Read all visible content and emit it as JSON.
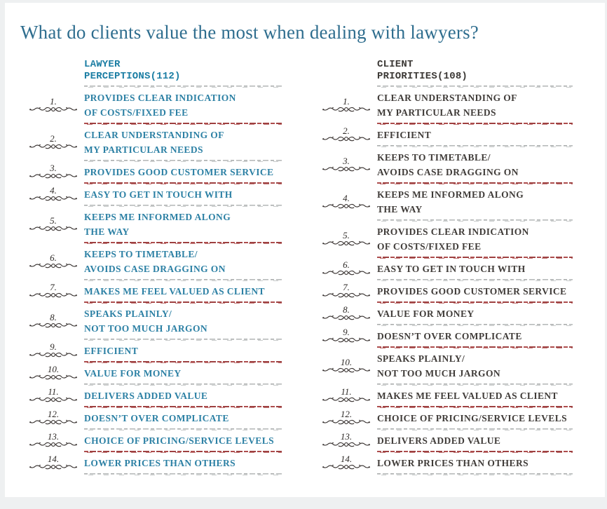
{
  "title": "What do clients value the most when dealing with lawyers?",
  "colors": {
    "title_teal": "#2e6d8e",
    "lawyer_accent_teal": "#1a7da3",
    "client_dark": "#3b3835",
    "separator_red": "#ad4d4d",
    "separator_gray": "#aaadad",
    "ornament_ink": "#383230"
  },
  "columns": [
    {
      "header_line1": "LAWYER",
      "header_line2": "PERCEPTIONS(112)",
      "items": [
        {
          "num": "1.",
          "lines": [
            "PROVIDES CLEAR INDICATION",
            "OF COSTS/FIXED FEE"
          ]
        },
        {
          "num": "2.",
          "lines": [
            "CLEAR UNDERSTANDING OF",
            "MY PARTICULAR NEEDS"
          ]
        },
        {
          "num": "3.",
          "lines": [
            "PROVIDES GOOD CUSTOMER SERVICE"
          ]
        },
        {
          "num": "4.",
          "lines": [
            "EASY TO GET IN TOUCH WITH"
          ]
        },
        {
          "num": "5.",
          "lines": [
            "KEEPS ME INFORMED ALONG",
            "THE WAY"
          ]
        },
        {
          "num": "6.",
          "lines": [
            "KEEPS TO TIMETABLE/",
            "AVOIDS CASE DRAGGING ON"
          ]
        },
        {
          "num": "7.",
          "lines": [
            "MAKES ME FEEL VALUED AS CLIENT"
          ]
        },
        {
          "num": "8.",
          "lines": [
            "SPEAKS PLAINLY/",
            "NOT TOO MUCH JARGON"
          ]
        },
        {
          "num": "9.",
          "lines": [
            "EFFICIENT"
          ]
        },
        {
          "num": "10.",
          "lines": [
            "VALUE FOR MONEY"
          ]
        },
        {
          "num": "11.",
          "lines": [
            "DELIVERS ADDED VALUE"
          ]
        },
        {
          "num": "12.",
          "lines": [
            "DOESN’T OVER COMPLICATE"
          ]
        },
        {
          "num": "13.",
          "lines": [
            "CHOICE OF PRICING/SERVICE LEVELS"
          ]
        },
        {
          "num": "14.",
          "lines": [
            "LOWER PRICES THAN OTHERS"
          ]
        }
      ]
    },
    {
      "header_line1": "CLIENT",
      "header_line2": "PRIORITIES(108)",
      "items": [
        {
          "num": "1.",
          "lines": [
            "CLEAR UNDERSTANDING OF",
            "MY PARTICULAR NEEDS"
          ]
        },
        {
          "num": "2.",
          "lines": [
            "EFFICIENT"
          ]
        },
        {
          "num": "3.",
          "lines": [
            "KEEPS TO TIMETABLE/",
            "AVOIDS CASE DRAGGING ON"
          ]
        },
        {
          "num": "4.",
          "lines": [
            "KEEPS ME INFORMED ALONG",
            "THE WAY"
          ]
        },
        {
          "num": "5.",
          "lines": [
            "PROVIDES CLEAR INDICATION",
            "OF COSTS/FIXED FEE"
          ]
        },
        {
          "num": "6.",
          "lines": [
            "EASY TO GET IN TOUCH WITH"
          ]
        },
        {
          "num": "7.",
          "lines": [
            "PROVIDES GOOD CUSTOMER SERVICE"
          ]
        },
        {
          "num": "8.",
          "lines": [
            "VALUE FOR MONEY"
          ]
        },
        {
          "num": "9.",
          "lines": [
            "DOESN’T OVER COMPLICATE"
          ]
        },
        {
          "num": "10.",
          "lines": [
            "SPEAKS PLAINLY/",
            "NOT TOO MUCH JARGON"
          ]
        },
        {
          "num": "11.",
          "lines": [
            "MAKES ME FEEL VALUED AS CLIENT"
          ]
        },
        {
          "num": "12.",
          "lines": [
            "CHOICE OF PRICING/SERVICE LEVELS"
          ]
        },
        {
          "num": "13.",
          "lines": [
            "DELIVERS ADDED VALUE"
          ]
        },
        {
          "num": "14.",
          "lines": [
            "LOWER PRICES THAN OTHERS"
          ]
        }
      ]
    }
  ],
  "chart_data": {
    "type": "table",
    "title": "What do clients value the most when dealing with lawyers?",
    "columns": [
      "LAWYER PERCEPTIONS(112)",
      "CLIENT PRIORITIES(108)"
    ],
    "lawyer_perceptions_ranking": [
      "PROVIDES CLEAR INDICATION OF COSTS/FIXED FEE",
      "CLEAR UNDERSTANDING OF MY PARTICULAR NEEDS",
      "PROVIDES GOOD CUSTOMER SERVICE",
      "EASY TO GET IN TOUCH WITH",
      "KEEPS ME INFORMED ALONG THE WAY",
      "KEEPS TO TIMETABLE/AVOIDS CASE DRAGGING ON",
      "MAKES ME FEEL VALUED AS CLIENT",
      "SPEAKS PLAINLY/NOT TOO MUCH JARGON",
      "EFFICIENT",
      "VALUE FOR MONEY",
      "DELIVERS ADDED VALUE",
      "DOESN’T OVER COMPLICATE",
      "CHOICE OF PRICING/SERVICE LEVELS",
      "LOWER PRICES THAN OTHERS"
    ],
    "client_priorities_ranking": [
      "CLEAR UNDERSTANDING OF MY PARTICULAR NEEDS",
      "EFFICIENT",
      "KEEPS TO TIMETABLE/AVOIDS CASE DRAGGING ON",
      "KEEPS ME INFORMED ALONG THE WAY",
      "PROVIDES CLEAR INDICATION OF COSTS/FIXED FEE",
      "EASY TO GET IN TOUCH WITH",
      "PROVIDES GOOD CUSTOMER SERVICE",
      "VALUE FOR MONEY",
      "DOESN’T OVER COMPLICATE",
      "SPEAKS PLAINLY/NOT TOO MUCH JARGON",
      "MAKES ME FEEL VALUED AS CLIENT",
      "CHOICE OF PRICING/SERVICE LEVELS",
      "DELIVERS ADDED VALUE",
      "LOWER PRICES THAN OTHERS"
    ],
    "sample_sizes": {
      "lawyers": 112,
      "clients": 108
    }
  }
}
